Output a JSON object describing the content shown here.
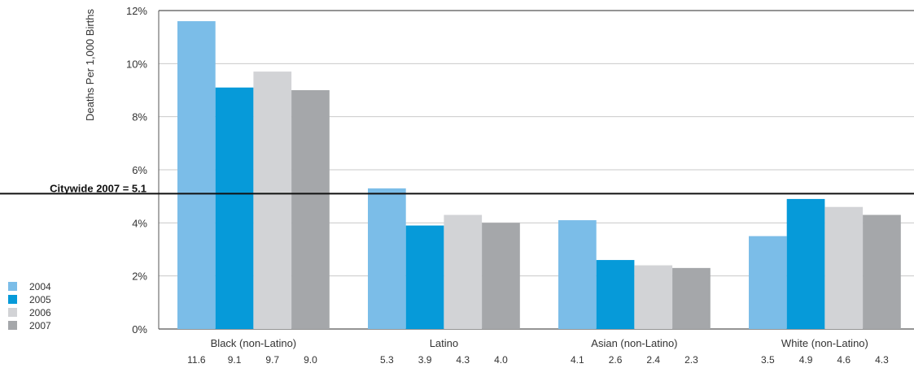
{
  "chart_data": {
    "type": "bar",
    "ylabel": "Deaths Per 1,000 Births",
    "ylim": [
      0,
      12
    ],
    "yticks": [
      0,
      2,
      4,
      6,
      8,
      10,
      12
    ],
    "ytick_labels": [
      "0%",
      "2%",
      "4%",
      "6%",
      "8%",
      "10%",
      "12%"
    ],
    "grid": "horizontal",
    "legend_position": "bottom-left",
    "categories": [
      "Black (non-Latino)",
      "Latino",
      "Asian (non-Latino)",
      "White (non-Latino)"
    ],
    "series": [
      {
        "name": "2004",
        "color": "#7bbde8",
        "values": [
          11.6,
          5.3,
          4.1,
          3.5
        ],
        "value_labels": [
          "11.6",
          "5.3",
          "4.1",
          "3.5"
        ]
      },
      {
        "name": "2005",
        "color": "#069ad9",
        "values": [
          9.1,
          3.9,
          2.6,
          4.9
        ],
        "value_labels": [
          "9.1",
          "3.9",
          "2.6",
          "4.9"
        ]
      },
      {
        "name": "2006",
        "color": "#d2d3d6",
        "values": [
          9.7,
          4.3,
          2.4,
          4.6
        ],
        "value_labels": [
          "9.7",
          "4.3",
          "2.4",
          "4.6"
        ]
      },
      {
        "name": "2007",
        "color": "#a5a7aa",
        "values": [
          9.0,
          4.0,
          2.3,
          4.3
        ],
        "value_labels": [
          "9.0",
          "4.0",
          "2.3",
          "4.3"
        ]
      }
    ],
    "reference_line": {
      "value": 5.1,
      "label": "Citywide 2007 = 5.1"
    }
  }
}
